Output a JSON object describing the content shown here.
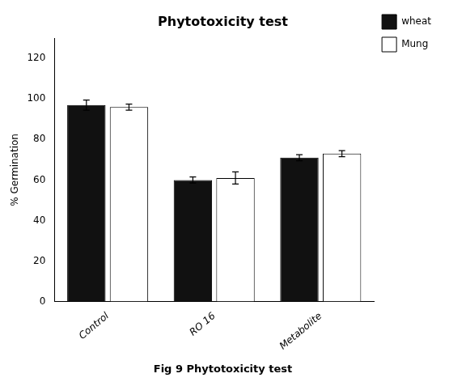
{
  "chart_data": {
    "type": "bar",
    "title": "Phytotoxicity test",
    "caption": "Fig 9 Phytotoxicity test",
    "ylabel": "% Germination",
    "categories": [
      "Control",
      "RO 16",
      "Metabolite"
    ],
    "series": [
      {
        "name": "wheat",
        "color": "#111111",
        "values": [
          97,
          60,
          71
        ],
        "errors": [
          2.5,
          1.5,
          1.5
        ]
      },
      {
        "name": "Mung",
        "color": "#ffffff",
        "values": [
          96,
          61,
          73
        ],
        "errors": [
          1.5,
          3.0,
          1.5
        ]
      }
    ],
    "ylim": [
      0,
      130
    ],
    "yticks": [
      0,
      20,
      40,
      60,
      80,
      100,
      120
    ],
    "grid": false,
    "legend": "right"
  }
}
